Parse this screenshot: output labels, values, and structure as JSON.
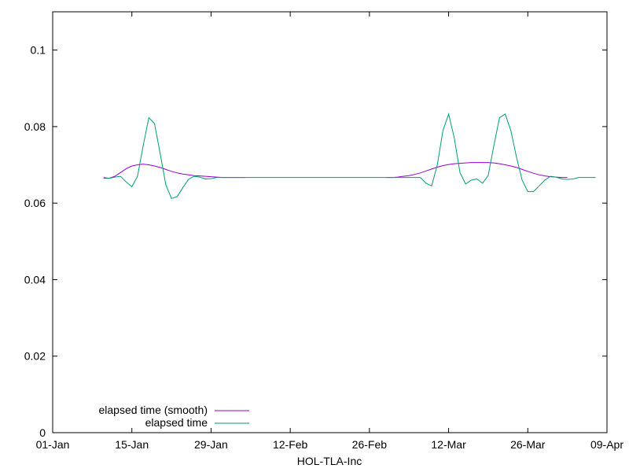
{
  "chart_data": {
    "type": "line",
    "title": "",
    "xlabel": "HOL-TLA-Inc",
    "ylabel": "",
    "xlim": [
      "2023-01-01",
      "2023-04-09"
    ],
    "ylim": [
      0,
      0.11
    ],
    "x_tick_labels": [
      "01-Jan",
      "15-Jan",
      "29-Jan",
      "12-Feb",
      "26-Feb",
      "12-Mar",
      "26-Mar",
      "09-Apr"
    ],
    "x_tick_dates": [
      "2023-01-01",
      "2023-01-15",
      "2023-01-29",
      "2023-02-12",
      "2023-02-26",
      "2023-03-12",
      "2023-03-26",
      "2023-04-09"
    ],
    "y_ticks": [
      0,
      0.02,
      0.04,
      0.06,
      0.08,
      0.1
    ],
    "y_tick_labels": [
      "0",
      "0.02",
      "0.04",
      "0.06",
      "0.08",
      "0.1"
    ],
    "grid": false,
    "legend_position": "bottom-left",
    "series": [
      {
        "name": "elapsed time (smooth)",
        "color": "#9400d3",
        "points": [
          [
            "2023-01-10",
            0.0665
          ],
          [
            "2023-01-11",
            0.0665
          ],
          [
            "2023-01-12",
            0.067
          ],
          [
            "2023-01-13",
            0.068
          ],
          [
            "2023-01-14",
            0.069
          ],
          [
            "2023-01-15",
            0.0697
          ],
          [
            "2023-01-16",
            0.07
          ],
          [
            "2023-01-17",
            0.0702
          ],
          [
            "2023-01-18",
            0.07
          ],
          [
            "2023-01-19",
            0.0697
          ],
          [
            "2023-01-20",
            0.0693
          ],
          [
            "2023-01-21",
            0.0688
          ],
          [
            "2023-01-22",
            0.0683
          ],
          [
            "2023-01-23",
            0.0679
          ],
          [
            "2023-01-24",
            0.0676
          ],
          [
            "2023-01-25",
            0.0674
          ],
          [
            "2023-01-26",
            0.0672
          ],
          [
            "2023-01-27",
            0.0671
          ],
          [
            "2023-01-28",
            0.067
          ],
          [
            "2023-01-29",
            0.0669
          ],
          [
            "2023-01-30",
            0.0668
          ],
          [
            "2023-01-31",
            0.0667
          ],
          [
            "2023-02-01",
            0.0667
          ],
          [
            "2023-02-02",
            0.0667
          ],
          [
            "2023-02-03",
            0.0667
          ],
          [
            "2023-02-04",
            0.0667
          ],
          [
            "2023-03-01",
            0.0667
          ],
          [
            "2023-03-02",
            0.0667
          ],
          [
            "2023-03-03",
            0.0668
          ],
          [
            "2023-03-04",
            0.067
          ],
          [
            "2023-03-05",
            0.0672
          ],
          [
            "2023-03-06",
            0.0675
          ],
          [
            "2023-03-07",
            0.0679
          ],
          [
            "2023-03-08",
            0.0684
          ],
          [
            "2023-03-09",
            0.0689
          ],
          [
            "2023-03-10",
            0.0694
          ],
          [
            "2023-03-11",
            0.0698
          ],
          [
            "2023-03-12",
            0.0701
          ],
          [
            "2023-03-13",
            0.0703
          ],
          [
            "2023-03-14",
            0.0704
          ],
          [
            "2023-03-15",
            0.0705
          ],
          [
            "2023-03-16",
            0.0706
          ],
          [
            "2023-03-17",
            0.0706
          ],
          [
            "2023-03-18",
            0.0706
          ],
          [
            "2023-03-19",
            0.0706
          ],
          [
            "2023-03-20",
            0.0705
          ],
          [
            "2023-03-21",
            0.0703
          ],
          [
            "2023-03-22",
            0.07
          ],
          [
            "2023-03-23",
            0.0697
          ],
          [
            "2023-03-24",
            0.0693
          ],
          [
            "2023-03-25",
            0.0688
          ],
          [
            "2023-03-26",
            0.0683
          ],
          [
            "2023-03-27",
            0.0678
          ],
          [
            "2023-03-28",
            0.0674
          ],
          [
            "2023-03-29",
            0.0671
          ],
          [
            "2023-03-30",
            0.0669
          ],
          [
            "2023-03-31",
            0.0668
          ],
          [
            "2023-04-01",
            0.0667
          ],
          [
            "2023-04-02",
            0.0667
          ]
        ]
      },
      {
        "name": "elapsed time",
        "color": "#009e73",
        "points": [
          [
            "2023-01-10",
            0.0667
          ],
          [
            "2023-01-11",
            0.0665
          ],
          [
            "2023-01-12",
            0.0668
          ],
          [
            "2023-01-13",
            0.067
          ],
          [
            "2023-01-14",
            0.0655
          ],
          [
            "2023-01-15",
            0.0643
          ],
          [
            "2023-01-16",
            0.067
          ],
          [
            "2023-01-17",
            0.075
          ],
          [
            "2023-01-18",
            0.0823
          ],
          [
            "2023-01-19",
            0.0808
          ],
          [
            "2023-01-20",
            0.073
          ],
          [
            "2023-01-21",
            0.0648
          ],
          [
            "2023-01-22",
            0.0612
          ],
          [
            "2023-01-23",
            0.0617
          ],
          [
            "2023-01-24",
            0.064
          ],
          [
            "2023-01-25",
            0.0662
          ],
          [
            "2023-01-26",
            0.067
          ],
          [
            "2023-01-27",
            0.0668
          ],
          [
            "2023-01-28",
            0.0663
          ],
          [
            "2023-01-29",
            0.0664
          ],
          [
            "2023-01-30",
            0.0667
          ],
          [
            "2023-02-05",
            0.0667
          ],
          [
            "2023-02-12",
            0.0667
          ],
          [
            "2023-02-19",
            0.0667
          ],
          [
            "2023-02-26",
            0.0667
          ],
          [
            "2023-03-05",
            0.0667
          ],
          [
            "2023-03-07",
            0.0667
          ],
          [
            "2023-03-08",
            0.0652
          ],
          [
            "2023-03-09",
            0.0645
          ],
          [
            "2023-03-10",
            0.07
          ],
          [
            "2023-03-11",
            0.079
          ],
          [
            "2023-03-12",
            0.0833
          ],
          [
            "2023-03-13",
            0.077
          ],
          [
            "2023-03-14",
            0.068
          ],
          [
            "2023-03-15",
            0.065
          ],
          [
            "2023-03-16",
            0.066
          ],
          [
            "2023-03-17",
            0.0663
          ],
          [
            "2023-03-18",
            0.0652
          ],
          [
            "2023-03-19",
            0.0672
          ],
          [
            "2023-03-20",
            0.075
          ],
          [
            "2023-03-21",
            0.0823
          ],
          [
            "2023-03-22",
            0.0833
          ],
          [
            "2023-03-23",
            0.079
          ],
          [
            "2023-03-24",
            0.072
          ],
          [
            "2023-03-25",
            0.066
          ],
          [
            "2023-03-26",
            0.063
          ],
          [
            "2023-03-27",
            0.063
          ],
          [
            "2023-03-28",
            0.0645
          ],
          [
            "2023-03-29",
            0.066
          ],
          [
            "2023-03-30",
            0.067
          ],
          [
            "2023-03-31",
            0.0668
          ],
          [
            "2023-04-01",
            0.0663
          ],
          [
            "2023-04-02",
            0.0662
          ],
          [
            "2023-04-03",
            0.0663
          ],
          [
            "2023-04-04",
            0.0667
          ],
          [
            "2023-04-07",
            0.0667
          ]
        ]
      }
    ]
  }
}
